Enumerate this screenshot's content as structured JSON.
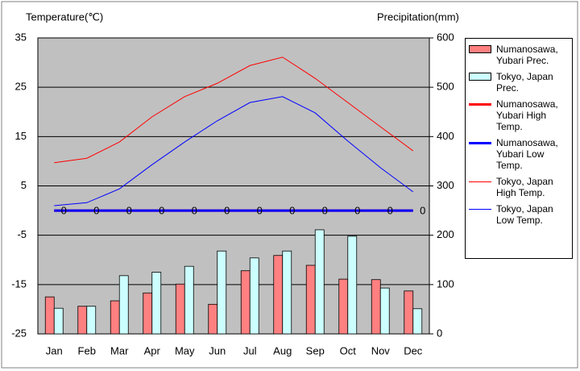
{
  "chart_data": {
    "type": "bar_line",
    "y_label": "Temperature(℃)",
    "y2_label": "Precipitation(mm)",
    "categories": [
      "Jan",
      "Feb",
      "Mar",
      "Apr",
      "May",
      "Jun",
      "Jul",
      "Aug",
      "Sep",
      "Oct",
      "Nov",
      "Dec"
    ],
    "ylim": [
      -25,
      35
    ],
    "yticks": [
      -25,
      -15,
      -5,
      5,
      15,
      25,
      35
    ],
    "y2lim": [
      0,
      600
    ],
    "y2ticks": [
      0,
      100,
      200,
      300,
      400,
      500,
      600
    ],
    "grid": true,
    "legend": "right",
    "series": [
      {
        "name": "Numanosawa, Yubari Prec.",
        "kind": "bar",
        "axis": "y2",
        "color": "#ff8080",
        "values": [
          75,
          56,
          67,
          83,
          101,
          60,
          128,
          159,
          139,
          111,
          110,
          87
        ]
      },
      {
        "name": "Tokyo, Japan Prec.",
        "kind": "bar",
        "axis": "y2",
        "color": "#ccffff",
        "values": [
          52,
          56,
          118,
          125,
          137,
          168,
          154,
          168,
          211,
          198,
          93,
          51
        ]
      },
      {
        "name": "Numanosawa, Yubari High Temp.",
        "kind": "line",
        "color": "#ff0000",
        "width": 3,
        "values": [
          0,
          0,
          0,
          0,
          0,
          0,
          0,
          0,
          0,
          0,
          0,
          0
        ]
      },
      {
        "name": "Numanosawa, Yubari Low Temp.",
        "kind": "line",
        "color": "#0000ff",
        "width": 3,
        "labels": true,
        "values": [
          0,
          0,
          0,
          0,
          0,
          0,
          0,
          0,
          0,
          0,
          0,
          0
        ]
      },
      {
        "name": "Tokyo, Japan High Temp.",
        "kind": "line",
        "color": "#ff0000",
        "width": 1,
        "values": [
          9.7,
          10.6,
          13.9,
          19.0,
          23.1,
          25.8,
          29.4,
          31.1,
          26.8,
          21.9,
          17.0,
          12.1
        ]
      },
      {
        "name": "Tokyo, Japan Low Temp.",
        "kind": "line",
        "color": "#0000ff",
        "width": 1,
        "values": [
          1.0,
          1.6,
          4.4,
          9.3,
          13.9,
          18.2,
          21.9,
          23.1,
          19.8,
          14.1,
          8.7,
          3.8
        ]
      }
    ]
  }
}
